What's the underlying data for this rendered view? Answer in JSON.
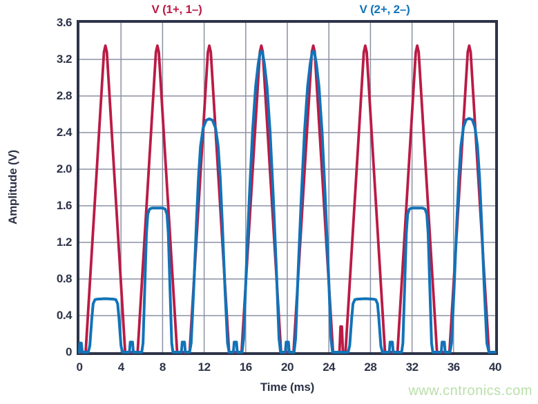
{
  "watermark": {
    "text": "www.cntronics.com",
    "color": "#b9dfa9"
  },
  "chart_data": {
    "type": "line",
    "title": "",
    "xlabel": "Time (ms)",
    "ylabel": "Amplitude (V)",
    "xlim": [
      0,
      40
    ],
    "ylim": [
      0,
      3.6
    ],
    "grid": true,
    "legend_position": "top",
    "colors": {
      "frame": "#2d3348",
      "grid": "#8b91a4",
      "text": "#2d3348",
      "background": "#ffffff"
    },
    "x_ticks": {
      "labels": [
        "0",
        "4",
        "8",
        "12",
        "16",
        "20",
        "24",
        "28",
        "32",
        "36",
        "40"
      ],
      "values": [
        0,
        4,
        8,
        12,
        16,
        20,
        24,
        28,
        32,
        36,
        40
      ]
    },
    "y_ticks": {
      "labels": [
        "3.6",
        "3.2",
        "2.8",
        "2.4",
        "2.0",
        "1.6",
        "1.2",
        "0.8",
        "0.4",
        "0"
      ],
      "values": [
        3.6,
        3.2,
        2.8,
        2.4,
        2.0,
        1.6,
        1.2,
        0.8,
        0.4,
        0
      ]
    },
    "series": [
      {
        "name": "V (1+, 1–)",
        "color": "#ba1b45",
        "stroke_width": 3.8,
        "description": "Periodic triangular pulses, period 5 ms, peak 3.35 V, plus narrow 0.28 V pulse at 25.2 ms",
        "points": [
          [
            0,
            0
          ],
          [
            0.6,
            0
          ],
          [
            2.36,
            3.28
          ],
          [
            2.5,
            3.35
          ],
          [
            2.64,
            3.28
          ],
          [
            4.4,
            0
          ],
          [
            5.6,
            0
          ],
          [
            7.36,
            3.28
          ],
          [
            7.5,
            3.35
          ],
          [
            7.64,
            3.28
          ],
          [
            9.4,
            0
          ],
          [
            10.6,
            0
          ],
          [
            12.36,
            3.28
          ],
          [
            12.5,
            3.35
          ],
          [
            12.64,
            3.28
          ],
          [
            14.4,
            0
          ],
          [
            15.6,
            0
          ],
          [
            17.36,
            3.28
          ],
          [
            17.5,
            3.35
          ],
          [
            17.64,
            3.28
          ],
          [
            19.4,
            0
          ],
          [
            20.6,
            0
          ],
          [
            22.36,
            3.28
          ],
          [
            22.5,
            3.35
          ],
          [
            22.64,
            3.28
          ],
          [
            24.4,
            0
          ],
          [
            25.02,
            0
          ],
          [
            25.12,
            0.28
          ],
          [
            25.25,
            0.28
          ],
          [
            25.35,
            0
          ],
          [
            25.6,
            0
          ],
          [
            27.36,
            3.28
          ],
          [
            27.5,
            3.35
          ],
          [
            27.64,
            3.28
          ],
          [
            29.4,
            0
          ],
          [
            30.6,
            0
          ],
          [
            32.36,
            3.28
          ],
          [
            32.5,
            3.35
          ],
          [
            32.64,
            3.28
          ],
          [
            34.4,
            0
          ],
          [
            35.6,
            0
          ],
          [
            37.36,
            3.28
          ],
          [
            37.5,
            3.35
          ],
          [
            37.64,
            3.28
          ],
          [
            39.4,
            0
          ],
          [
            40,
            0
          ]
        ]
      },
      {
        "name": "V (2+, 2–)",
        "color": "#1173b8",
        "stroke_width": 4,
        "description": "Pulses every 5 ms with amplitude-modulated tops: 0.58, 1.57, 2.54, 3.29, 3.29, 0.58, 1.57, 2.55 V, small 0.11 V notch pulses between",
        "points": [
          [
            0,
            0
          ],
          [
            0.05,
            0.1
          ],
          [
            0.18,
            0.1
          ],
          [
            0.28,
            0
          ],
          [
            0.85,
            0
          ],
          [
            1.0,
            0.07
          ],
          [
            1.2,
            0.38
          ],
          [
            1.32,
            0.53
          ],
          [
            1.5,
            0.575
          ],
          [
            1.75,
            0.58
          ],
          [
            2.5,
            0.585
          ],
          [
            3.25,
            0.58
          ],
          [
            3.5,
            0.575
          ],
          [
            3.68,
            0.53
          ],
          [
            3.8,
            0.38
          ],
          [
            4.0,
            0.07
          ],
          [
            4.15,
            0
          ],
          [
            4.81,
            0
          ],
          [
            4.89,
            0.11
          ],
          [
            5.11,
            0.11
          ],
          [
            5.19,
            0
          ],
          [
            6.0,
            0
          ],
          [
            6.12,
            0.1
          ],
          [
            6.3,
            0.75
          ],
          [
            6.45,
            1.3
          ],
          [
            6.58,
            1.51
          ],
          [
            6.75,
            1.565
          ],
          [
            7.0,
            1.575
          ],
          [
            8.0,
            1.575
          ],
          [
            8.25,
            1.565
          ],
          [
            8.42,
            1.51
          ],
          [
            8.55,
            1.3
          ],
          [
            8.7,
            0.75
          ],
          [
            8.88,
            0.1
          ],
          [
            9.0,
            0
          ],
          [
            9.81,
            0
          ],
          [
            9.89,
            0.11
          ],
          [
            10.11,
            0.11
          ],
          [
            10.19,
            0
          ],
          [
            10.6,
            0
          ],
          [
            10.75,
            0.1
          ],
          [
            11.0,
            0.7
          ],
          [
            11.25,
            1.4
          ],
          [
            11.45,
            1.9
          ],
          [
            11.65,
            2.25
          ],
          [
            11.9,
            2.45
          ],
          [
            12.2,
            2.535
          ],
          [
            12.5,
            2.55
          ],
          [
            12.8,
            2.535
          ],
          [
            13.1,
            2.45
          ],
          [
            13.35,
            2.25
          ],
          [
            13.55,
            1.9
          ],
          [
            13.75,
            1.4
          ],
          [
            14.0,
            0.7
          ],
          [
            14.25,
            0.1
          ],
          [
            14.4,
            0
          ],
          [
            14.81,
            0
          ],
          [
            14.89,
            0.11
          ],
          [
            15.11,
            0.11
          ],
          [
            15.19,
            0
          ],
          [
            15.65,
            0
          ],
          [
            15.8,
            0.15
          ],
          [
            16.05,
            0.9
          ],
          [
            16.35,
            1.7
          ],
          [
            16.65,
            2.4
          ],
          [
            16.95,
            2.9
          ],
          [
            17.2,
            3.15
          ],
          [
            17.38,
            3.27
          ],
          [
            17.5,
            3.29
          ],
          [
            17.62,
            3.27
          ],
          [
            17.8,
            3.15
          ],
          [
            18.05,
            2.9
          ],
          [
            18.35,
            2.4
          ],
          [
            18.65,
            1.7
          ],
          [
            18.95,
            0.9
          ],
          [
            19.2,
            0.15
          ],
          [
            19.35,
            0
          ],
          [
            19.81,
            0
          ],
          [
            19.89,
            0.11
          ],
          [
            20.11,
            0.11
          ],
          [
            20.19,
            0
          ],
          [
            20.65,
            0
          ],
          [
            20.8,
            0.15
          ],
          [
            21.05,
            0.9
          ],
          [
            21.35,
            1.7
          ],
          [
            21.65,
            2.4
          ],
          [
            21.95,
            2.9
          ],
          [
            22.2,
            3.15
          ],
          [
            22.38,
            3.27
          ],
          [
            22.5,
            3.29
          ],
          [
            22.62,
            3.27
          ],
          [
            22.8,
            3.15
          ],
          [
            23.05,
            2.9
          ],
          [
            23.35,
            2.4
          ],
          [
            23.65,
            1.7
          ],
          [
            23.95,
            0.9
          ],
          [
            24.2,
            0.15
          ],
          [
            24.35,
            0
          ],
          [
            25.85,
            0
          ],
          [
            26.0,
            0.07
          ],
          [
            26.2,
            0.38
          ],
          [
            26.32,
            0.53
          ],
          [
            26.5,
            0.575
          ],
          [
            26.75,
            0.58
          ],
          [
            27.5,
            0.585
          ],
          [
            28.25,
            0.58
          ],
          [
            28.5,
            0.575
          ],
          [
            28.68,
            0.53
          ],
          [
            28.8,
            0.38
          ],
          [
            29.0,
            0.07
          ],
          [
            29.15,
            0
          ],
          [
            29.81,
            0
          ],
          [
            29.89,
            0.11
          ],
          [
            30.11,
            0.11
          ],
          [
            30.19,
            0
          ],
          [
            31.0,
            0
          ],
          [
            31.12,
            0.1
          ],
          [
            31.3,
            0.75
          ],
          [
            31.45,
            1.3
          ],
          [
            31.58,
            1.51
          ],
          [
            31.75,
            1.565
          ],
          [
            32.0,
            1.575
          ],
          [
            33.0,
            1.575
          ],
          [
            33.25,
            1.565
          ],
          [
            33.42,
            1.51
          ],
          [
            33.55,
            1.3
          ],
          [
            33.7,
            0.75
          ],
          [
            33.88,
            0.1
          ],
          [
            34.0,
            0
          ],
          [
            34.81,
            0
          ],
          [
            34.89,
            0.11
          ],
          [
            35.11,
            0.11
          ],
          [
            35.19,
            0
          ],
          [
            35.65,
            0
          ],
          [
            35.8,
            0.1
          ],
          [
            36.05,
            0.7
          ],
          [
            36.3,
            1.4
          ],
          [
            36.5,
            1.9
          ],
          [
            36.7,
            2.25
          ],
          [
            36.95,
            2.46
          ],
          [
            37.2,
            2.54
          ],
          [
            37.5,
            2.555
          ],
          [
            37.8,
            2.54
          ],
          [
            38.05,
            2.46
          ],
          [
            38.3,
            2.25
          ],
          [
            38.5,
            1.9
          ],
          [
            38.7,
            1.4
          ],
          [
            38.95,
            0.7
          ],
          [
            39.2,
            0.1
          ],
          [
            39.4,
            0
          ],
          [
            40,
            0
          ]
        ]
      }
    ]
  }
}
